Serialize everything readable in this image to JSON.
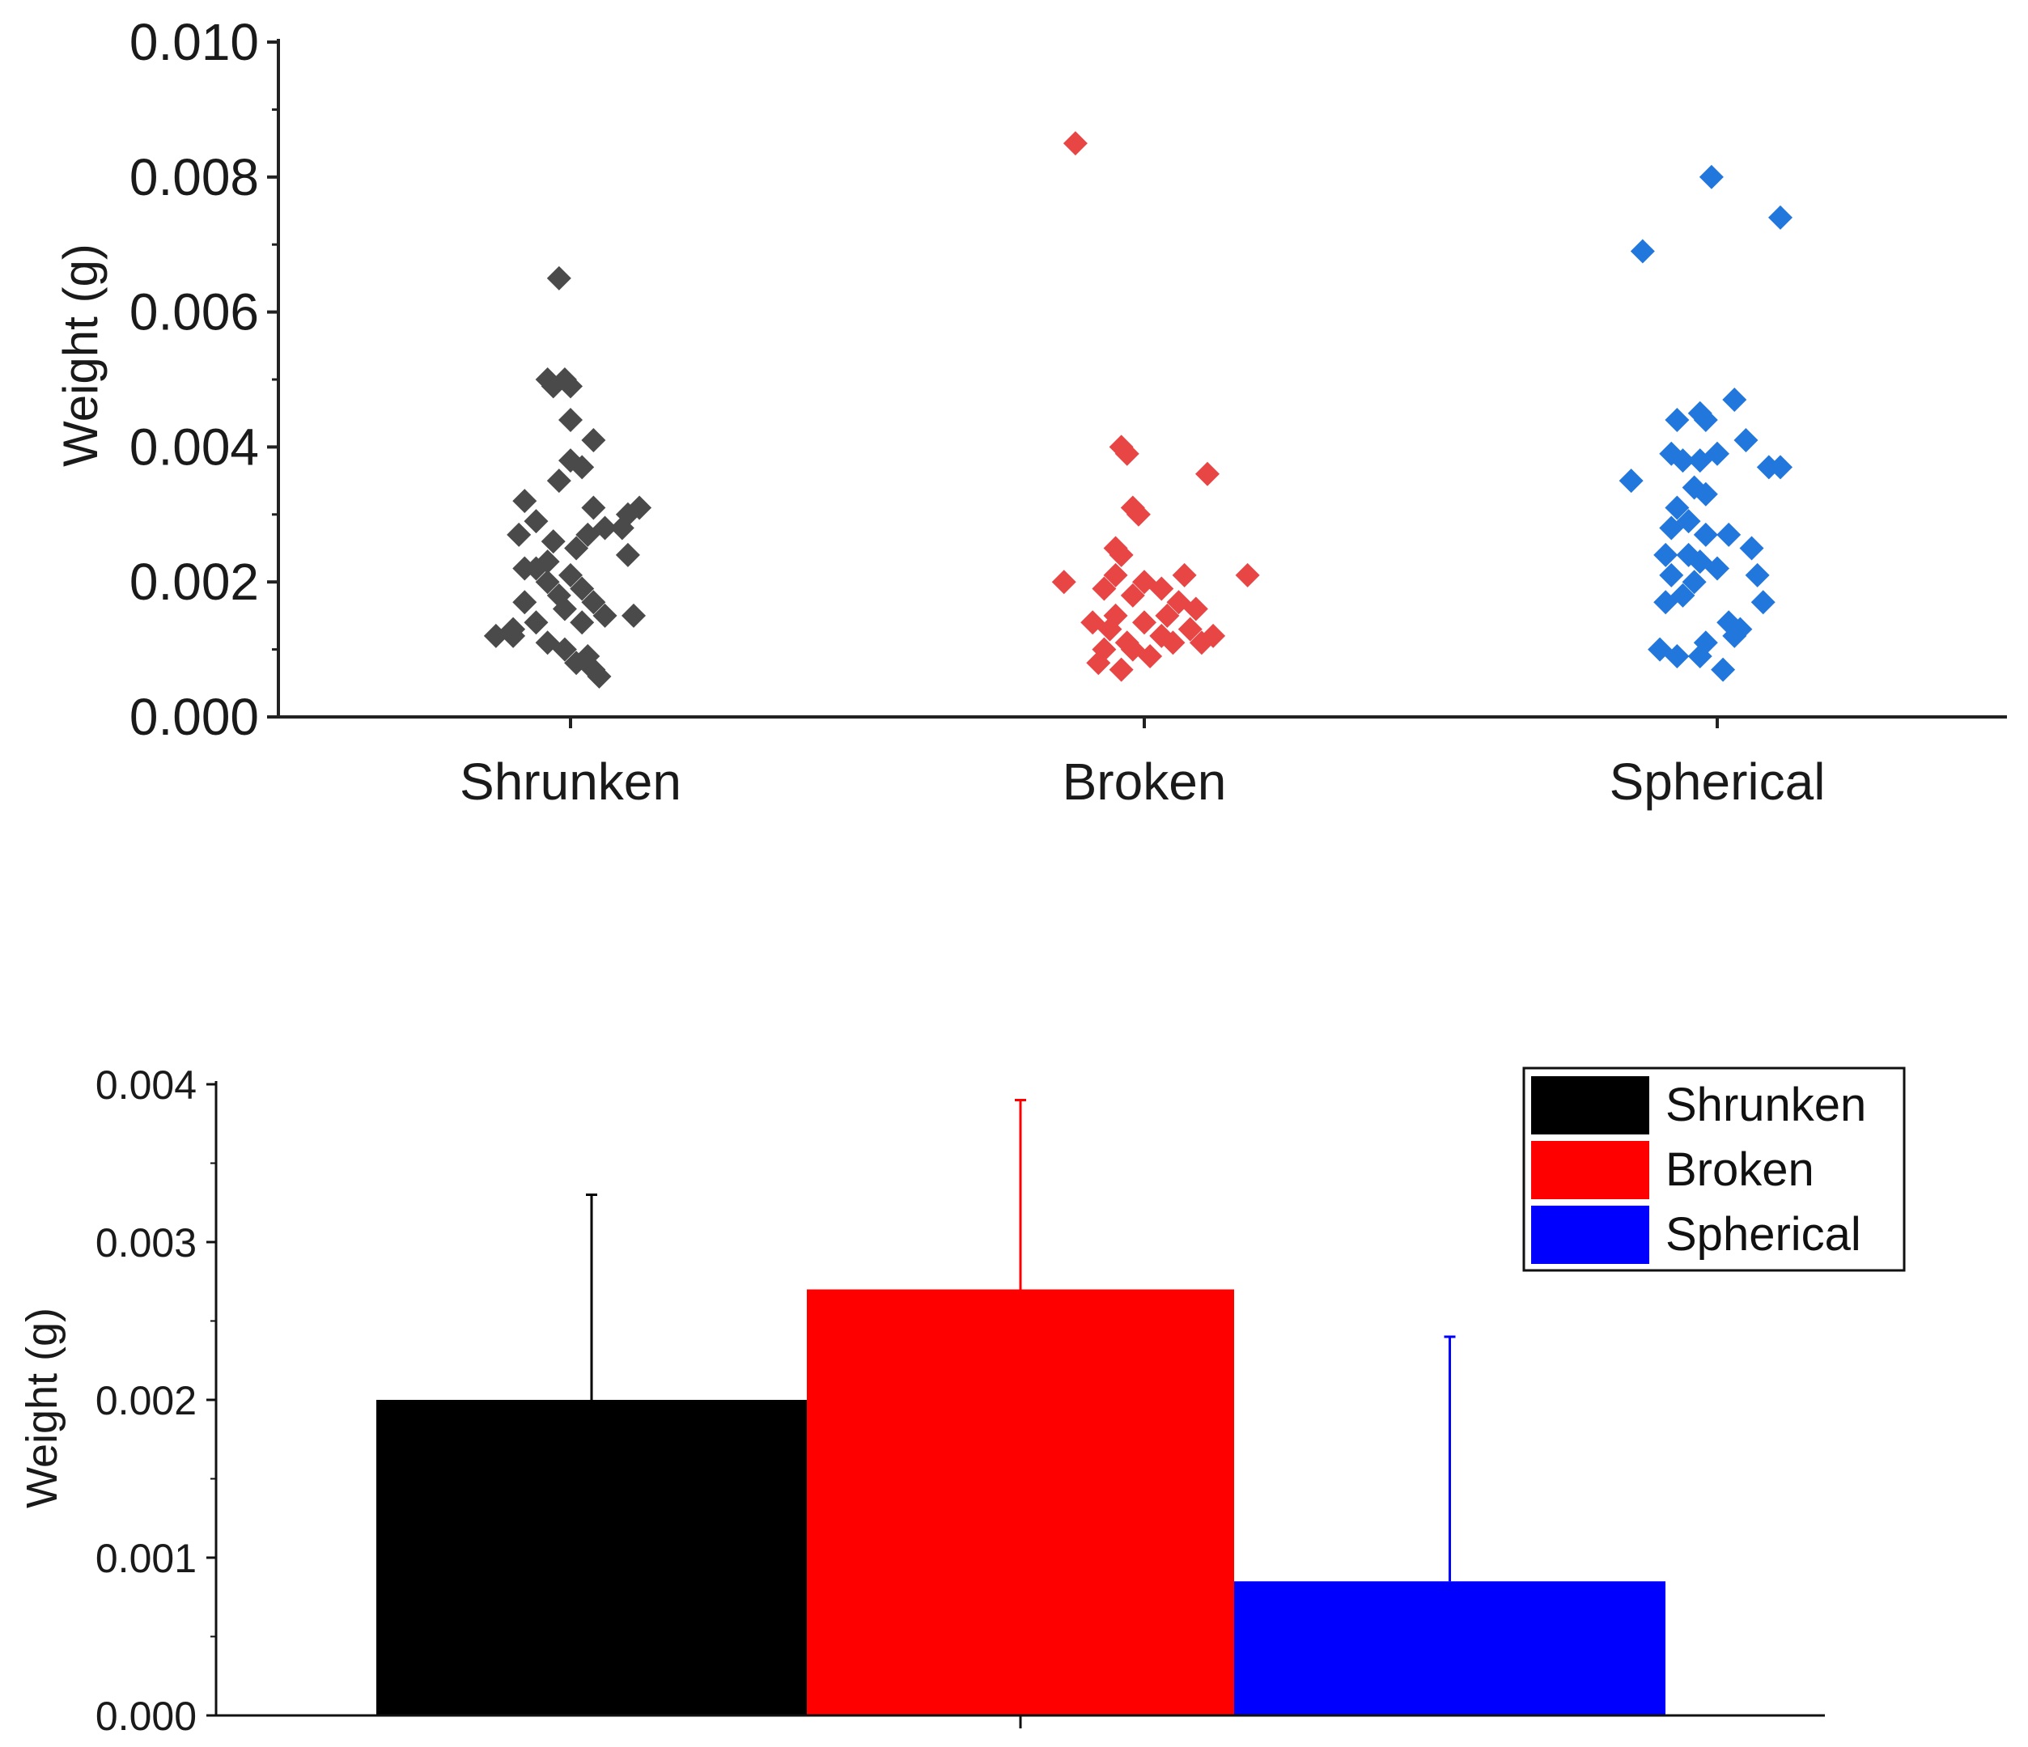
{
  "chart_data": [
    {
      "type": "scatter",
      "title": "",
      "xlabel": "",
      "ylabel": "Weight (g)",
      "ylim": [
        0,
        0.01
      ],
      "yticks": [
        "0.000",
        "0.002",
        "0.004",
        "0.006",
        "0.008",
        "0.010"
      ],
      "categories": [
        "Shrunken",
        "Broken",
        "Spherical"
      ],
      "series": [
        {
          "name": "Shrunken",
          "color": "#4a4a4a",
          "points": [
            [
              -0.02,
              0.0065
            ],
            [
              -0.04,
              0.005
            ],
            [
              -0.01,
              0.005
            ],
            [
              -0.03,
              0.0049
            ],
            [
              0.0,
              0.0049
            ],
            [
              0.0,
              0.0044
            ],
            [
              0.04,
              0.0041
            ],
            [
              0.0,
              0.0038
            ],
            [
              0.02,
              0.0037
            ],
            [
              -0.02,
              0.0035
            ],
            [
              -0.08,
              0.0032
            ],
            [
              0.04,
              0.0031
            ],
            [
              0.12,
              0.0031
            ],
            [
              0.1,
              0.003
            ],
            [
              -0.06,
              0.0029
            ],
            [
              0.06,
              0.0028
            ],
            [
              0.09,
              0.0028
            ],
            [
              0.03,
              0.0027
            ],
            [
              -0.09,
              0.0027
            ],
            [
              -0.03,
              0.0026
            ],
            [
              0.01,
              0.0025
            ],
            [
              0.1,
              0.0024
            ],
            [
              -0.04,
              0.0023
            ],
            [
              -0.08,
              0.0022
            ],
            [
              -0.06,
              0.0022
            ],
            [
              0.0,
              0.0021
            ],
            [
              -0.04,
              0.002
            ],
            [
              0.02,
              0.0019
            ],
            [
              -0.02,
              0.0018
            ],
            [
              -0.08,
              0.0017
            ],
            [
              0.04,
              0.0017
            ],
            [
              -0.01,
              0.0016
            ],
            [
              0.06,
              0.0015
            ],
            [
              0.11,
              0.0015
            ],
            [
              -0.06,
              0.0014
            ],
            [
              0.02,
              0.0014
            ],
            [
              -0.1,
              0.0013
            ],
            [
              -0.13,
              0.0012
            ],
            [
              -0.1,
              0.0012
            ],
            [
              -0.04,
              0.0011
            ],
            [
              -0.01,
              0.001
            ],
            [
              0.03,
              0.0009
            ],
            [
              0.01,
              0.0008
            ],
            [
              0.04,
              0.0007
            ],
            [
              0.05,
              0.0006
            ]
          ]
        },
        {
          "name": "Broken",
          "color": "#e84545",
          "points": [
            [
              -0.12,
              0.0085
            ],
            [
              -0.04,
              0.004
            ],
            [
              -0.03,
              0.0039
            ],
            [
              0.11,
              0.0036
            ],
            [
              -0.02,
              0.0031
            ],
            [
              -0.01,
              0.003
            ],
            [
              -0.05,
              0.0025
            ],
            [
              -0.04,
              0.0024
            ],
            [
              0.07,
              0.0021
            ],
            [
              0.18,
              0.0021
            ],
            [
              -0.05,
              0.0021
            ],
            [
              -0.14,
              0.002
            ],
            [
              0.0,
              0.002
            ],
            [
              0.03,
              0.0019
            ],
            [
              -0.07,
              0.0019
            ],
            [
              -0.02,
              0.0018
            ],
            [
              0.06,
              0.0017
            ],
            [
              0.09,
              0.0016
            ],
            [
              -0.05,
              0.0015
            ],
            [
              0.04,
              0.0015
            ],
            [
              -0.09,
              0.0014
            ],
            [
              0.0,
              0.0014
            ],
            [
              -0.06,
              0.0013
            ],
            [
              0.08,
              0.0013
            ],
            [
              0.03,
              0.0012
            ],
            [
              0.12,
              0.0012
            ],
            [
              -0.03,
              0.0011
            ],
            [
              0.1,
              0.0011
            ],
            [
              0.05,
              0.0011
            ],
            [
              -0.07,
              0.001
            ],
            [
              -0.02,
              0.001
            ],
            [
              0.01,
              0.0009
            ],
            [
              -0.08,
              0.0008
            ],
            [
              -0.04,
              0.0007
            ]
          ]
        },
        {
          "name": "Spherical",
          "color": "#2277dd",
          "points": [
            [
              -0.01,
              0.008
            ],
            [
              0.11,
              0.0074
            ],
            [
              -0.13,
              0.0069
            ],
            [
              0.03,
              0.0047
            ],
            [
              -0.07,
              0.0044
            ],
            [
              -0.03,
              0.0045
            ],
            [
              -0.02,
              0.0044
            ],
            [
              0.05,
              0.0041
            ],
            [
              -0.08,
              0.0039
            ],
            [
              -0.06,
              0.0038
            ],
            [
              -0.03,
              0.0038
            ],
            [
              0.0,
              0.0039
            ],
            [
              0.09,
              0.0037
            ],
            [
              0.11,
              0.0037
            ],
            [
              -0.15,
              0.0035
            ],
            [
              -0.04,
              0.0034
            ],
            [
              -0.02,
              0.0033
            ],
            [
              -0.07,
              0.0031
            ],
            [
              -0.05,
              0.0029
            ],
            [
              -0.08,
              0.0028
            ],
            [
              -0.02,
              0.0027
            ],
            [
              0.02,
              0.0027
            ],
            [
              0.06,
              0.0025
            ],
            [
              -0.09,
              0.0024
            ],
            [
              -0.05,
              0.0024
            ],
            [
              -0.03,
              0.0023
            ],
            [
              0.0,
              0.0022
            ],
            [
              -0.08,
              0.0021
            ],
            [
              0.07,
              0.0021
            ],
            [
              -0.04,
              0.002
            ],
            [
              -0.06,
              0.0018
            ],
            [
              0.08,
              0.0017
            ],
            [
              -0.09,
              0.0017
            ],
            [
              0.02,
              0.0014
            ],
            [
              0.04,
              0.0013
            ],
            [
              0.03,
              0.0012
            ],
            [
              -0.02,
              0.0011
            ],
            [
              -0.1,
              0.001
            ],
            [
              -0.07,
              0.0009
            ],
            [
              -0.03,
              0.0009
            ],
            [
              0.01,
              0.0007
            ]
          ]
        }
      ]
    },
    {
      "type": "bar",
      "title": "",
      "xlabel": "",
      "ylabel": "Weight (g)",
      "ylim": [
        0,
        0.004
      ],
      "yticks": [
        "0.000",
        "0.001",
        "0.002",
        "0.003",
        "0.004"
      ],
      "series": [
        {
          "name": "Shrunken",
          "value": 0.002,
          "error_upper": 0.0033,
          "color": "#000000"
        },
        {
          "name": "Broken",
          "value": 0.0027,
          "error_upper": 0.0039,
          "color": "#ff0000"
        },
        {
          "name": "Spherical",
          "value": 0.00085,
          "error_upper": 0.0024,
          "color": "#0000ff"
        }
      ],
      "legend": {
        "position": "top-right",
        "entries": [
          "Shrunken",
          "Broken",
          "Spherical"
        ]
      }
    }
  ]
}
